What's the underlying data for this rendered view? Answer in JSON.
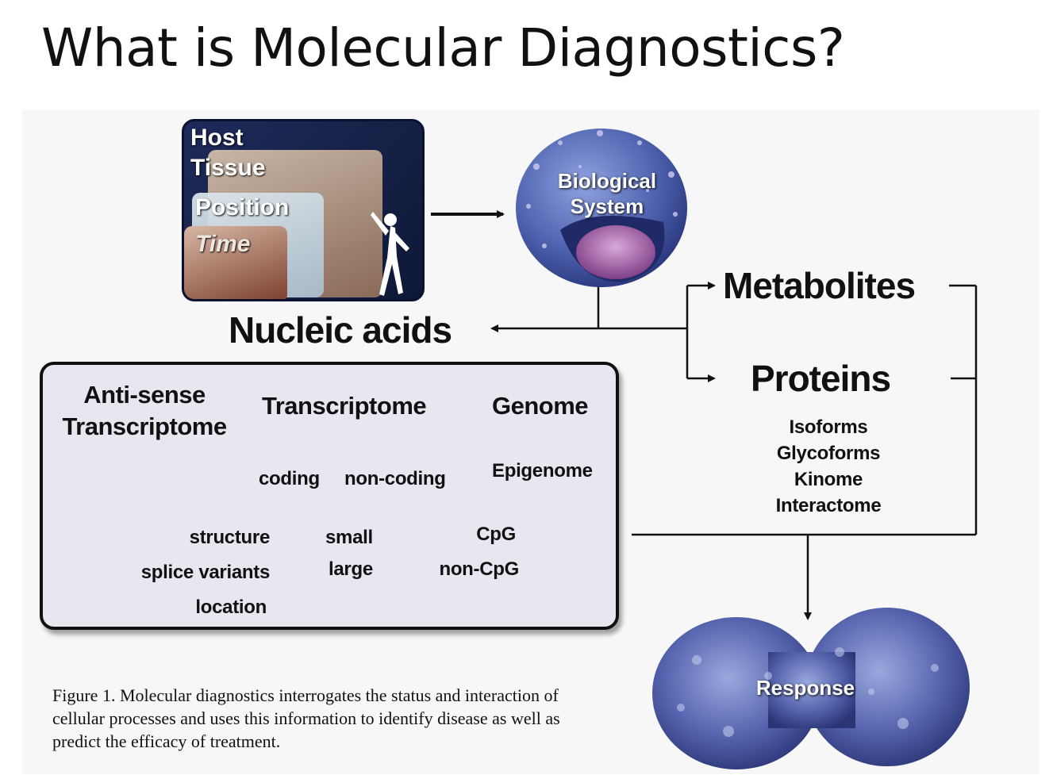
{
  "title": "What is Molecular Diagnostics?",
  "host": {
    "host": "Host",
    "tissue": "Tissue",
    "position": "Position",
    "time": "Time"
  },
  "cell": {
    "line1": "Biological",
    "line2": "System"
  },
  "nucleic_acids": "Nucleic acids",
  "metabolites": "Metabolites",
  "proteins": {
    "title": "Proteins",
    "items": [
      "Isoforms",
      "Glycoforms",
      "Kinome",
      "Interactome"
    ]
  },
  "box": {
    "antisense_line1": "Anti-sense",
    "antisense_line2": "Transcriptome",
    "transcriptome": "Transcriptome",
    "genome": "Genome",
    "coding": "coding",
    "noncoding": "non-coding",
    "epigenome": "Epigenome",
    "structure": "structure",
    "splice_variants": "splice variants",
    "location": "location",
    "small": "small",
    "large": "large",
    "cpg": "CpG",
    "noncpg": "non-CpG"
  },
  "response": "Response",
  "caption": "Figure 1. Molecular diagnostics interrogates the status and interaction of cellular processes and uses this information to identify disease as well as predict the efficacy of treatment.",
  "colors": {
    "host_bg": "#1e2b5a",
    "cell_blue": "#5b6fb8",
    "nucleus": "#9b5aa0",
    "box_bg": "#e7e7ef"
  }
}
